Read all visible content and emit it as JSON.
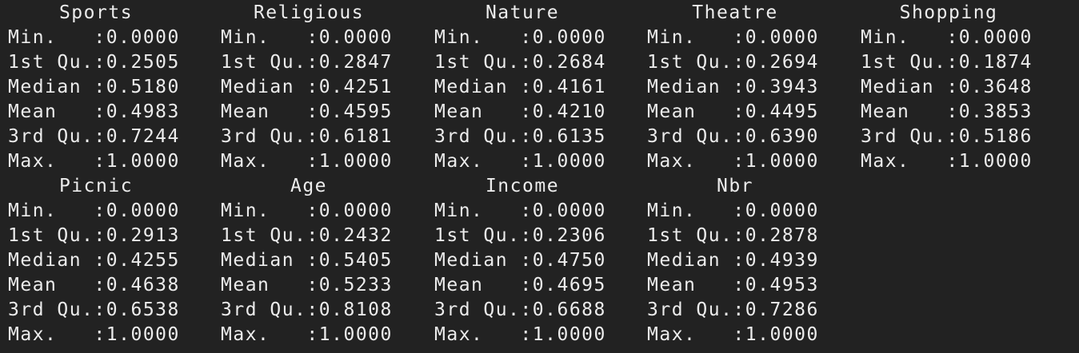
{
  "blocks": [
    {
      "headers": [
        "Sports",
        "Religious",
        "Nature",
        "Theatre",
        "Shopping"
      ],
      "rows": [
        [
          "Min.   :0.0000",
          "Min.   :0.0000",
          "Min.   :0.0000",
          "Min.   :0.0000",
          "Min.   :0.0000"
        ],
        [
          "1st Qu.:0.2505",
          "1st Qu.:0.2847",
          "1st Qu.:0.2684",
          "1st Qu.:0.2694",
          "1st Qu.:0.1874"
        ],
        [
          "Median :0.5180",
          "Median :0.4251",
          "Median :0.4161",
          "Median :0.3943",
          "Median :0.3648"
        ],
        [
          "Mean   :0.4983",
          "Mean   :0.4595",
          "Mean   :0.4210",
          "Mean   :0.4495",
          "Mean   :0.3853"
        ],
        [
          "3rd Qu.:0.7244",
          "3rd Qu.:0.6181",
          "3rd Qu.:0.6135",
          "3rd Qu.:0.6390",
          "3rd Qu.:0.5186"
        ],
        [
          "Max.   :1.0000",
          "Max.   :1.0000",
          "Max.   :1.0000",
          "Max.   :1.0000",
          "Max.   :1.0000"
        ]
      ]
    },
    {
      "headers": [
        "Picnic",
        "Age",
        "Income",
        "Nbr"
      ],
      "rows": [
        [
          "Min.   :0.0000",
          "Min.   :0.0000",
          "Min.   :0.0000",
          "Min.   :0.0000"
        ],
        [
          "1st Qu.:0.2913",
          "1st Qu.:0.2432",
          "1st Qu.:0.2306",
          "1st Qu.:0.2878"
        ],
        [
          "Median :0.4255",
          "Median :0.5405",
          "Median :0.4750",
          "Median :0.4939"
        ],
        [
          "Mean   :0.4638",
          "Mean   :0.5233",
          "Mean   :0.4695",
          "Mean   :0.4953"
        ],
        [
          "3rd Qu.:0.6538",
          "3rd Qu.:0.8108",
          "3rd Qu.:0.6688",
          "3rd Qu.:0.7286"
        ],
        [
          "Max.   :1.0000",
          "Max.   :1.0000",
          "Max.   :1.0000",
          "Max.   :1.0000"
        ]
      ]
    }
  ],
  "colors": {
    "background": "#222222",
    "text": "#ececec",
    "command": "#c678dd"
  }
}
